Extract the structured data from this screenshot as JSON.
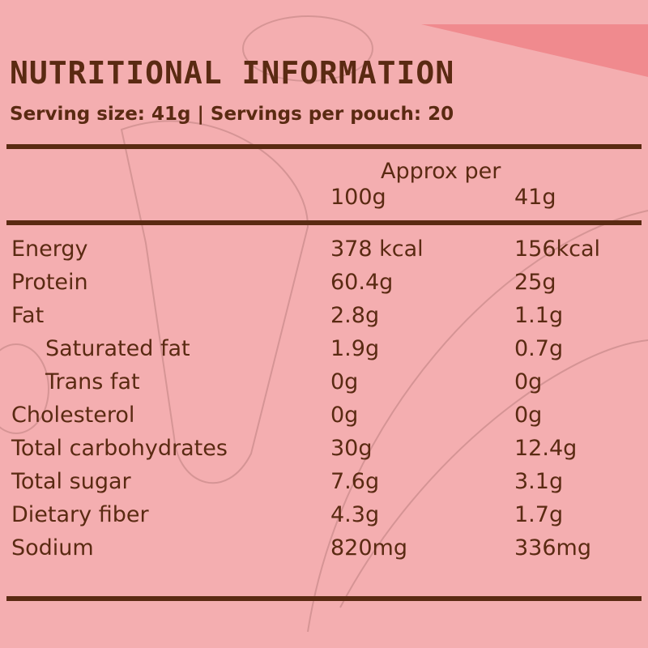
{
  "header": {
    "title": "NUTRITIONAL INFORMATION",
    "subtitle": "Serving size: 41g | Servings per pouch: 20"
  },
  "table": {
    "group_header": "Approx per",
    "columns": [
      "100g",
      "41g"
    ],
    "rows": [
      [
        "Energy",
        "378 kcal",
        "156kcal"
      ],
      [
        "Protein",
        "60.4g",
        "25g"
      ],
      [
        "Fat",
        "2.8g",
        "1.1g"
      ],
      [
        "Saturated fat",
        "1.9g",
        "0.7g"
      ],
      [
        "Trans fat",
        "0g",
        "0g"
      ],
      [
        "Cholesterol",
        "0g",
        "0g"
      ],
      [
        "Total carbohydrates",
        "30g",
        "12.4g"
      ],
      [
        "Total sugar",
        "7.6g",
        "3.1g"
      ],
      [
        "Dietary fiber",
        "4.3g",
        "1.7g"
      ],
      [
        "Sodium",
        "820mg",
        "336mg"
      ]
    ]
  }
}
